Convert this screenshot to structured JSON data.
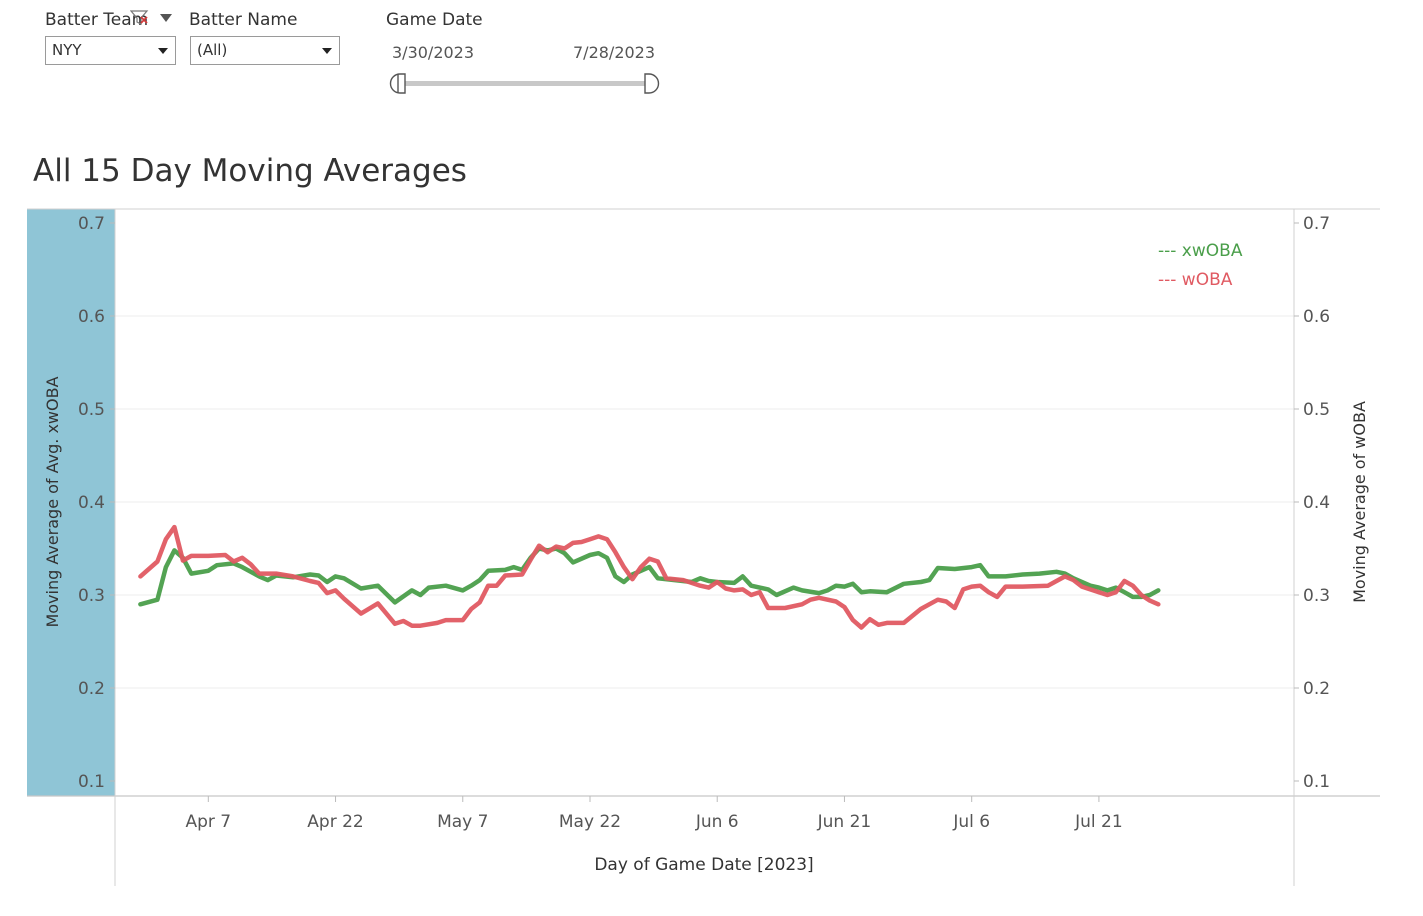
{
  "filters": {
    "batter_team": {
      "label": "Batter Team",
      "value": "NYY"
    },
    "batter_name": {
      "label": "Batter Name",
      "value": "(All)"
    },
    "game_date": {
      "label": "Game Date",
      "start": "3/30/2023",
      "end": "7/28/2023"
    }
  },
  "icons": {
    "filter_clear": "filter-clear-icon",
    "dropdown_menu": "dropdown-menu-icon",
    "select_arrow": "chevron-down-icon"
  },
  "colors": {
    "xwoba": "#4a9e4a",
    "woba": "#e05a62",
    "highlight_band": "#8fc5d6"
  },
  "chart_data": {
    "type": "line",
    "title": "All 15 Day Moving Averages",
    "xlabel": "Day of Game Date [2023]",
    "ylabel_left": "Moving Average of Avg. xwOBA",
    "ylabel_right": "Moving Average of wOBA",
    "xlim": [
      "2023-03-27",
      "2023-08-13"
    ],
    "ylim": [
      0.1,
      0.7
    ],
    "y_ticks": [
      0.1,
      0.2,
      0.3,
      0.4,
      0.5,
      0.6,
      0.7
    ],
    "y_tick_labels": [
      "0.1",
      "0.2",
      "0.3",
      "0.4",
      "0.5",
      "0.6",
      "0.7"
    ],
    "x_ticks": [
      "2023-04-07",
      "2023-04-22",
      "2023-05-07",
      "2023-05-22",
      "2023-06-06",
      "2023-06-21",
      "2023-07-06",
      "2023-07-21"
    ],
    "x_tick_labels": [
      "Apr 7",
      "Apr 22",
      "May 7",
      "May 22",
      "Jun 6",
      "Jun 21",
      "Jul 6",
      "Jul 21"
    ],
    "grid": "horizontal",
    "legend": "top-right",
    "series": [
      {
        "name": "xwOBA",
        "legend_label": "--- xwOBA",
        "color": "#4a9e4a",
        "points": [
          [
            "2023-03-30",
            0.29
          ],
          [
            "2023-04-01",
            0.295
          ],
          [
            "2023-04-02",
            0.33
          ],
          [
            "2023-04-03",
            0.348
          ],
          [
            "2023-04-04",
            0.34
          ],
          [
            "2023-04-05",
            0.323
          ],
          [
            "2023-04-07",
            0.326
          ],
          [
            "2023-04-08",
            0.332
          ],
          [
            "2023-04-10",
            0.334
          ],
          [
            "2023-04-11",
            0.33
          ],
          [
            "2023-04-13",
            0.32
          ],
          [
            "2023-04-14",
            0.316
          ],
          [
            "2023-04-15",
            0.321
          ],
          [
            "2023-04-17",
            0.319
          ],
          [
            "2023-04-19",
            0.322
          ],
          [
            "2023-04-20",
            0.321
          ],
          [
            "2023-04-21",
            0.314
          ],
          [
            "2023-04-22",
            0.32
          ],
          [
            "2023-04-23",
            0.318
          ],
          [
            "2023-04-25",
            0.307
          ],
          [
            "2023-04-27",
            0.31
          ],
          [
            "2023-04-29",
            0.292
          ],
          [
            "2023-05-01",
            0.305
          ],
          [
            "2023-05-02",
            0.3
          ],
          [
            "2023-05-03",
            0.308
          ],
          [
            "2023-05-05",
            0.31
          ],
          [
            "2023-05-07",
            0.305
          ],
          [
            "2023-05-08",
            0.31
          ],
          [
            "2023-05-09",
            0.316
          ],
          [
            "2023-05-10",
            0.326
          ],
          [
            "2023-05-12",
            0.327
          ],
          [
            "2023-05-13",
            0.33
          ],
          [
            "2023-05-14",
            0.327
          ],
          [
            "2023-05-15",
            0.34
          ],
          [
            "2023-05-16",
            0.35
          ],
          [
            "2023-05-17",
            0.348
          ],
          [
            "2023-05-18",
            0.35
          ],
          [
            "2023-05-19",
            0.345
          ],
          [
            "2023-05-20",
            0.335
          ],
          [
            "2023-05-22",
            0.343
          ],
          [
            "2023-05-23",
            0.345
          ],
          [
            "2023-05-24",
            0.34
          ],
          [
            "2023-05-25",
            0.32
          ],
          [
            "2023-05-26",
            0.314
          ],
          [
            "2023-05-27",
            0.322
          ],
          [
            "2023-05-29",
            0.33
          ],
          [
            "2023-05-30",
            0.318
          ],
          [
            "2023-06-01",
            0.316
          ],
          [
            "2023-06-03",
            0.314
          ],
          [
            "2023-06-04",
            0.318
          ],
          [
            "2023-06-05",
            0.315
          ],
          [
            "2023-06-06",
            0.314
          ],
          [
            "2023-06-08",
            0.313
          ],
          [
            "2023-06-09",
            0.32
          ],
          [
            "2023-06-10",
            0.31
          ],
          [
            "2023-06-12",
            0.306
          ],
          [
            "2023-06-13",
            0.3
          ],
          [
            "2023-06-15",
            0.308
          ],
          [
            "2023-06-16",
            0.305
          ],
          [
            "2023-06-18",
            0.302
          ],
          [
            "2023-06-19",
            0.305
          ],
          [
            "2023-06-20",
            0.31
          ],
          [
            "2023-06-21",
            0.309
          ],
          [
            "2023-06-22",
            0.312
          ],
          [
            "2023-06-23",
            0.303
          ],
          [
            "2023-06-24",
            0.304
          ],
          [
            "2023-06-26",
            0.303
          ],
          [
            "2023-06-28",
            0.312
          ],
          [
            "2023-06-30",
            0.314
          ],
          [
            "2023-07-01",
            0.316
          ],
          [
            "2023-07-02",
            0.329
          ],
          [
            "2023-07-04",
            0.328
          ],
          [
            "2023-07-06",
            0.33
          ],
          [
            "2023-07-07",
            0.332
          ],
          [
            "2023-07-08",
            0.32
          ],
          [
            "2023-07-10",
            0.32
          ],
          [
            "2023-07-12",
            0.322
          ],
          [
            "2023-07-14",
            0.323
          ],
          [
            "2023-07-16",
            0.325
          ],
          [
            "2023-07-17",
            0.323
          ],
          [
            "2023-07-18",
            0.318
          ],
          [
            "2023-07-20",
            0.31
          ],
          [
            "2023-07-21",
            0.308
          ],
          [
            "2023-07-22",
            0.305
          ],
          [
            "2023-07-23",
            0.308
          ],
          [
            "2023-07-24",
            0.303
          ],
          [
            "2023-07-25",
            0.298
          ],
          [
            "2023-07-26",
            0.298
          ],
          [
            "2023-07-27",
            0.3
          ],
          [
            "2023-07-28",
            0.305
          ]
        ]
      },
      {
        "name": "wOBA",
        "legend_label": "--- wOBA",
        "color": "#e05a62",
        "points": [
          [
            "2023-03-30",
            0.32
          ],
          [
            "2023-04-01",
            0.336
          ],
          [
            "2023-04-02",
            0.36
          ],
          [
            "2023-04-03",
            0.373
          ],
          [
            "2023-04-04",
            0.337
          ],
          [
            "2023-04-05",
            0.342
          ],
          [
            "2023-04-07",
            0.342
          ],
          [
            "2023-04-09",
            0.343
          ],
          [
            "2023-04-10",
            0.336
          ],
          [
            "2023-04-11",
            0.34
          ],
          [
            "2023-04-12",
            0.333
          ],
          [
            "2023-04-13",
            0.323
          ],
          [
            "2023-04-15",
            0.323
          ],
          [
            "2023-04-17",
            0.32
          ],
          [
            "2023-04-19",
            0.315
          ],
          [
            "2023-04-20",
            0.313
          ],
          [
            "2023-04-21",
            0.302
          ],
          [
            "2023-04-22",
            0.305
          ],
          [
            "2023-04-23",
            0.296
          ],
          [
            "2023-04-25",
            0.28
          ],
          [
            "2023-04-27",
            0.291
          ],
          [
            "2023-04-29",
            0.269
          ],
          [
            "2023-04-30",
            0.272
          ],
          [
            "2023-05-01",
            0.267
          ],
          [
            "2023-05-02",
            0.267
          ],
          [
            "2023-05-04",
            0.27
          ],
          [
            "2023-05-05",
            0.273
          ],
          [
            "2023-05-07",
            0.273
          ],
          [
            "2023-05-08",
            0.285
          ],
          [
            "2023-05-09",
            0.292
          ],
          [
            "2023-05-10",
            0.31
          ],
          [
            "2023-05-11",
            0.31
          ],
          [
            "2023-05-12",
            0.321
          ],
          [
            "2023-05-14",
            0.322
          ],
          [
            "2023-05-15",
            0.338
          ],
          [
            "2023-05-16",
            0.353
          ],
          [
            "2023-05-17",
            0.346
          ],
          [
            "2023-05-18",
            0.352
          ],
          [
            "2023-05-19",
            0.35
          ],
          [
            "2023-05-20",
            0.356
          ],
          [
            "2023-05-21",
            0.357
          ],
          [
            "2023-05-22",
            0.36
          ],
          [
            "2023-05-23",
            0.363
          ],
          [
            "2023-05-24",
            0.36
          ],
          [
            "2023-05-25",
            0.346
          ],
          [
            "2023-05-26",
            0.33
          ],
          [
            "2023-05-27",
            0.317
          ],
          [
            "2023-05-28",
            0.33
          ],
          [
            "2023-05-29",
            0.339
          ],
          [
            "2023-05-30",
            0.336
          ],
          [
            "2023-05-31",
            0.318
          ],
          [
            "2023-06-02",
            0.316
          ],
          [
            "2023-06-04",
            0.31
          ],
          [
            "2023-06-05",
            0.308
          ],
          [
            "2023-06-06",
            0.314
          ],
          [
            "2023-06-07",
            0.307
          ],
          [
            "2023-06-08",
            0.305
          ],
          [
            "2023-06-09",
            0.306
          ],
          [
            "2023-06-10",
            0.3
          ],
          [
            "2023-06-11",
            0.303
          ],
          [
            "2023-06-12",
            0.286
          ],
          [
            "2023-06-14",
            0.286
          ],
          [
            "2023-06-16",
            0.29
          ],
          [
            "2023-06-17",
            0.295
          ],
          [
            "2023-06-18",
            0.297
          ],
          [
            "2023-06-20",
            0.293
          ],
          [
            "2023-06-21",
            0.287
          ],
          [
            "2023-06-22",
            0.273
          ],
          [
            "2023-06-23",
            0.265
          ],
          [
            "2023-06-24",
            0.274
          ],
          [
            "2023-06-25",
            0.268
          ],
          [
            "2023-06-26",
            0.27
          ],
          [
            "2023-06-28",
            0.27
          ],
          [
            "2023-06-30",
            0.285
          ],
          [
            "2023-07-01",
            0.29
          ],
          [
            "2023-07-02",
            0.295
          ],
          [
            "2023-07-03",
            0.293
          ],
          [
            "2023-07-04",
            0.286
          ],
          [
            "2023-07-05",
            0.306
          ],
          [
            "2023-07-06",
            0.309
          ],
          [
            "2023-07-07",
            0.31
          ],
          [
            "2023-07-08",
            0.303
          ],
          [
            "2023-07-09",
            0.298
          ],
          [
            "2023-07-10",
            0.309
          ],
          [
            "2023-07-12",
            0.309
          ],
          [
            "2023-07-15",
            0.31
          ],
          [
            "2023-07-16",
            0.315
          ],
          [
            "2023-07-17",
            0.32
          ],
          [
            "2023-07-18",
            0.316
          ],
          [
            "2023-07-19",
            0.309
          ],
          [
            "2023-07-21",
            0.303
          ],
          [
            "2023-07-22",
            0.3
          ],
          [
            "2023-07-23",
            0.303
          ],
          [
            "2023-07-24",
            0.315
          ],
          [
            "2023-07-25",
            0.31
          ],
          [
            "2023-07-26",
            0.3
          ],
          [
            "2023-07-27",
            0.294
          ],
          [
            "2023-07-28",
            0.29
          ]
        ]
      }
    ]
  }
}
